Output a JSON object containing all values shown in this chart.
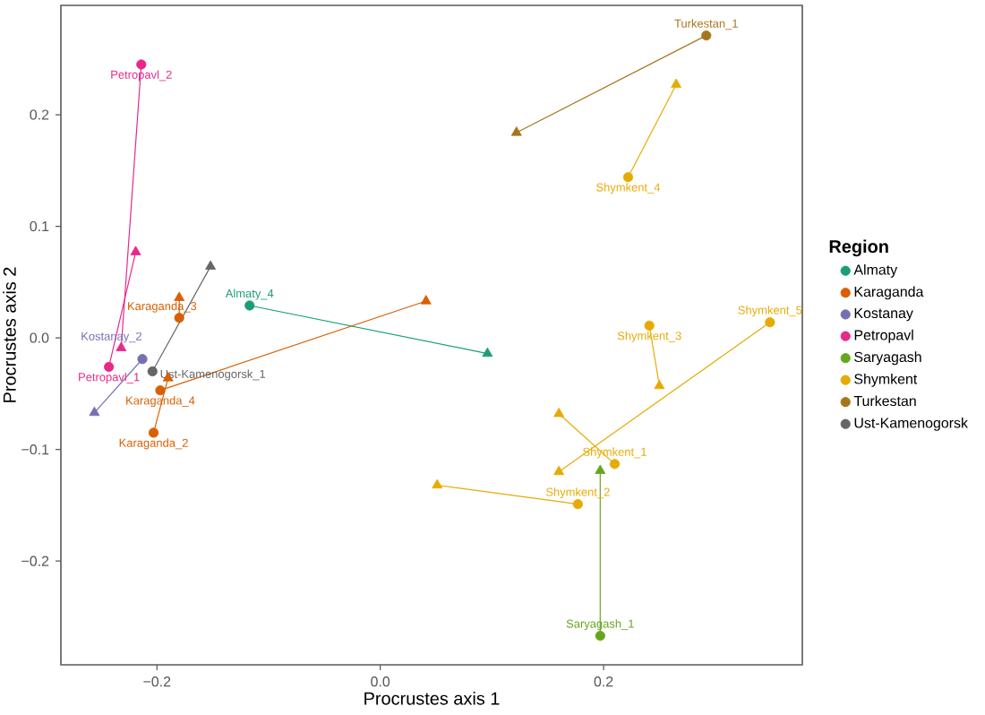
{
  "chart_data": {
    "type": "scatter",
    "xlabel": "Procrustes axis 1",
    "ylabel": "Procrustes axis 2",
    "legend_title": "Region",
    "legend": "right",
    "grid": false,
    "xlim": [
      -0.286,
      0.378
    ],
    "ylim": [
      -0.293,
      0.298
    ],
    "xticks": [
      {
        "value": -0.2,
        "label": "−0.2"
      },
      {
        "value": 0,
        "label": "0.0"
      },
      {
        "value": 0.2,
        "label": "0.2"
      }
    ],
    "yticks": [
      {
        "value": -0.2,
        "label": "−0.2"
      },
      {
        "value": -0.1,
        "label": "−0.1"
      },
      {
        "value": 0,
        "label": "0.0"
      },
      {
        "value": 0.1,
        "label": "0.1"
      },
      {
        "value": 0.2,
        "label": "0.2"
      }
    ],
    "series": [
      {
        "type": "line",
        "marker": "none",
        "color": "#1b9e77",
        "x": [
          -0.117,
          0.096
        ],
        "values": [
          0.029,
          -0.014
        ]
      },
      {
        "type": "line",
        "marker": "none",
        "color": "#d95f02",
        "x": [
          -0.18,
          -0.18
        ],
        "values": [
          0.018,
          0.036
        ]
      },
      {
        "type": "line",
        "marker": "none",
        "color": "#d95f02",
        "x": [
          -0.197,
          0.041
        ],
        "values": [
          -0.047,
          0.033
        ]
      },
      {
        "type": "line",
        "marker": "none",
        "color": "#d95f02",
        "x": [
          -0.203,
          -0.19
        ],
        "values": [
          -0.085,
          -0.036
        ]
      },
      {
        "type": "line",
        "marker": "none",
        "color": "#7570b3",
        "x": [
          -0.213,
          -0.256
        ],
        "values": [
          -0.019,
          -0.067
        ]
      },
      {
        "type": "line",
        "marker": "none",
        "color": "#e7298a",
        "x": [
          -0.214,
          -0.232
        ],
        "values": [
          0.245,
          -0.009
        ]
      },
      {
        "type": "line",
        "marker": "none",
        "color": "#e7298a",
        "x": [
          -0.243,
          -0.219
        ],
        "values": [
          -0.026,
          0.077
        ]
      },
      {
        "type": "line",
        "marker": "none",
        "color": "#66a61e",
        "x": [
          0.197,
          0.197
        ],
        "values": [
          -0.267,
          -0.119
        ]
      },
      {
        "type": "line",
        "marker": "none",
        "color": "#e6ab02",
        "x": [
          0.222,
          0.265
        ],
        "values": [
          0.144,
          0.227
        ]
      },
      {
        "type": "line",
        "marker": "none",
        "color": "#e6ab02",
        "x": [
          0.241,
          0.25
        ],
        "values": [
          0.011,
          -0.043
        ]
      },
      {
        "type": "line",
        "marker": "none",
        "color": "#e6ab02",
        "x": [
          0.349,
          0.16
        ],
        "values": [
          0.014,
          -0.12
        ]
      },
      {
        "type": "line",
        "marker": "none",
        "color": "#e6ab02",
        "x": [
          0.21,
          0.16
        ],
        "values": [
          -0.113,
          -0.068
        ]
      },
      {
        "type": "line",
        "marker": "none",
        "color": "#e6ab02",
        "x": [
          0.177,
          0.051
        ],
        "values": [
          -0.149,
          -0.132
        ]
      },
      {
        "type": "line",
        "marker": "none",
        "color": "#a6761d",
        "x": [
          0.292,
          0.122
        ],
        "values": [
          0.271,
          0.184
        ]
      },
      {
        "type": "line",
        "marker": "none",
        "color": "#666666",
        "x": [
          -0.204,
          -0.152
        ],
        "values": [
          -0.03,
          0.064
        ]
      },
      {
        "name": "Almaty",
        "marker": "circle",
        "color": "#1b9e77",
        "x": [
          -0.117
        ],
        "values": [
          0.029
        ]
      },
      {
        "name": "Karaganda",
        "marker": "circle",
        "color": "#d95f02",
        "x": [
          -0.18,
          -0.197,
          -0.203
        ],
        "values": [
          0.018,
          -0.047,
          -0.085
        ]
      },
      {
        "name": "Kostanay",
        "marker": "circle",
        "color": "#7570b3",
        "x": [
          -0.213
        ],
        "values": [
          -0.019
        ]
      },
      {
        "name": "Petropavl",
        "marker": "circle",
        "color": "#e7298a",
        "x": [
          -0.214,
          -0.243
        ],
        "values": [
          0.245,
          -0.026
        ]
      },
      {
        "name": "Saryagash",
        "marker": "circle",
        "color": "#66a61e",
        "x": [
          0.197
        ],
        "values": [
          -0.267
        ]
      },
      {
        "name": "Shymkent",
        "marker": "circle",
        "color": "#e6ab02",
        "x": [
          0.222,
          0.241,
          0.349,
          0.21,
          0.177
        ],
        "values": [
          0.144,
          0.011,
          0.014,
          -0.113,
          -0.149
        ]
      },
      {
        "name": "Turkestan",
        "marker": "circle",
        "color": "#a6761d",
        "x": [
          0.292
        ],
        "values": [
          0.271
        ]
      },
      {
        "name": "Ust-Kamenogorsk",
        "marker": "circle",
        "color": "#666666",
        "x": [
          -0.204
        ],
        "values": [
          -0.03
        ]
      },
      {
        "marker": "triangle",
        "color": "#1b9e77",
        "x": [
          0.096
        ],
        "values": [
          -0.014
        ]
      },
      {
        "marker": "triangle",
        "color": "#d95f02",
        "x": [
          -0.18,
          0.041,
          -0.19
        ],
        "values": [
          0.036,
          0.033,
          -0.036
        ]
      },
      {
        "marker": "triangle",
        "color": "#7570b3",
        "x": [
          -0.256
        ],
        "values": [
          -0.067
        ]
      },
      {
        "marker": "triangle",
        "color": "#e7298a",
        "x": [
          -0.232,
          -0.219
        ],
        "values": [
          -0.009,
          0.077
        ]
      },
      {
        "marker": "triangle",
        "color": "#66a61e",
        "x": [
          0.197
        ],
        "values": [
          -0.119
        ]
      },
      {
        "marker": "triangle",
        "color": "#e6ab02",
        "x": [
          0.265,
          0.25,
          0.16,
          0.16,
          0.051
        ],
        "values": [
          0.227,
          -0.043,
          -0.12,
          -0.068,
          -0.132
        ]
      },
      {
        "marker": "triangle",
        "color": "#a6761d",
        "x": [
          0.122
        ],
        "values": [
          0.184
        ]
      },
      {
        "marker": "triangle",
        "color": "#666666",
        "x": [
          -0.152
        ],
        "values": [
          0.064
        ]
      }
    ],
    "annotations": [
      {
        "text": "Almaty_4",
        "x": -0.117,
        "y": 0.029
      },
      {
        "text": "Karaganda_3",
        "x": -0.18,
        "y": 0.018
      },
      {
        "text": "Karaganda_4",
        "x": -0.197,
        "y": -0.047
      },
      {
        "text": "Karaganda_2",
        "x": -0.203,
        "y": -0.085
      },
      {
        "text": "Kostanay_2",
        "x": -0.213,
        "y": -0.019
      },
      {
        "text": "Petropavl_2",
        "x": -0.214,
        "y": 0.245
      },
      {
        "text": "Petropavl_1",
        "x": -0.243,
        "y": -0.026
      },
      {
        "text": "Saryagash_1",
        "x": 0.197,
        "y": -0.267
      },
      {
        "text": "Shymkent_4",
        "x": 0.222,
        "y": 0.144
      },
      {
        "text": "Shymkent_3",
        "x": 0.241,
        "y": 0.011
      },
      {
        "text": "Shymkent_5",
        "x": 0.349,
        "y": 0.014
      },
      {
        "text": "Shymkent_1",
        "x": 0.21,
        "y": -0.113
      },
      {
        "text": "Shymkent_2",
        "x": 0.177,
        "y": -0.149
      },
      {
        "text": "Turkestan_1",
        "x": 0.292,
        "y": 0.271
      },
      {
        "text": "Ust-Kamenogorsk_1",
        "x": -0.204,
        "y": -0.03
      }
    ]
  }
}
